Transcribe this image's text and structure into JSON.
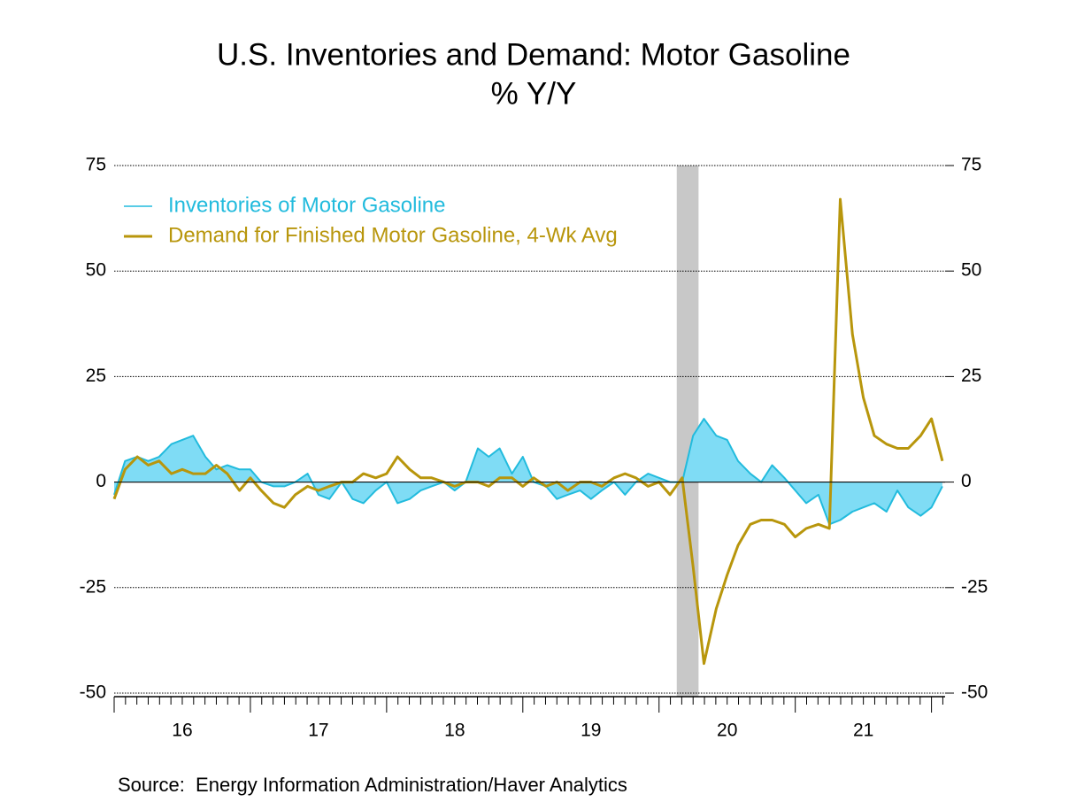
{
  "chart_data": {
    "type": "line",
    "title": "U.S. Inventories and Demand: Motor Gasoline",
    "subtitle": "% Y/Y",
    "source": "Source:  Energy Information Administration/Haver Analytics",
    "x": [
      2016.0,
      2016.08,
      2016.17,
      2016.25,
      2016.33,
      2016.42,
      2016.5,
      2016.58,
      2016.67,
      2016.75,
      2016.83,
      2016.92,
      2017.0,
      2017.08,
      2017.17,
      2017.25,
      2017.33,
      2017.42,
      2017.5,
      2017.58,
      2017.67,
      2017.75,
      2017.83,
      2017.92,
      2018.0,
      2018.08,
      2018.17,
      2018.25,
      2018.33,
      2018.42,
      2018.5,
      2018.58,
      2018.67,
      2018.75,
      2018.83,
      2018.92,
      2019.0,
      2019.08,
      2019.17,
      2019.25,
      2019.33,
      2019.42,
      2019.5,
      2019.58,
      2019.67,
      2019.75,
      2019.83,
      2019.92,
      2020.0,
      2020.08,
      2020.17,
      2020.25,
      2020.33,
      2020.42,
      2020.5,
      2020.58,
      2020.67,
      2020.75,
      2020.83,
      2020.92,
      2021.0,
      2021.08,
      2021.17,
      2021.25,
      2021.33,
      2021.42,
      2021.5,
      2021.58,
      2021.67,
      2021.75,
      2021.83,
      2021.92,
      2022.0,
      2022.08
    ],
    "series": [
      {
        "name": "Inventories of Motor Gasoline",
        "color": "#22bbdd",
        "fill": "#7fdcf5",
        "values": [
          -3,
          5,
          6,
          5,
          6,
          9,
          10,
          11,
          6,
          3,
          4,
          3,
          3,
          0,
          -1,
          -1,
          0,
          2,
          -3,
          -4,
          0,
          -4,
          -5,
          -2,
          0,
          -5,
          -4,
          -2,
          -1,
          0,
          -2,
          0,
          8,
          6,
          8,
          2,
          6,
          0,
          -1,
          -4,
          -3,
          -2,
          -4,
          -2,
          0,
          -3,
          0,
          2,
          1,
          0,
          0,
          11,
          15,
          11,
          10,
          5,
          2,
          0,
          4,
          1,
          -2,
          -5,
          -3,
          -10,
          -9,
          -7,
          -6,
          -5,
          -7,
          -2,
          -6,
          -8,
          -6,
          -1
        ]
      },
      {
        "name": "Demand for Finished Motor Gasoline, 4-Wk Avg",
        "color": "#b8960c",
        "values": [
          -4,
          3,
          6,
          4,
          5,
          2,
          3,
          2,
          2,
          4,
          2,
          -2,
          1,
          -2,
          -5,
          -6,
          -3,
          -1,
          -2,
          -1,
          0,
          0,
          2,
          1,
          2,
          6,
          3,
          1,
          1,
          0,
          -1,
          0,
          0,
          -1,
          1,
          1,
          -1,
          1,
          -1,
          0,
          -2,
          0,
          0,
          -1,
          1,
          2,
          1,
          -1,
          0,
          -3,
          1,
          -20,
          -43,
          -30,
          -22,
          -15,
          -10,
          -9,
          -9,
          -10,
          -13,
          -11,
          -10,
          -11,
          67,
          35,
          20,
          11,
          9,
          8,
          8,
          11,
          15,
          5
        ]
      }
    ],
    "shade": [
      2020.13,
      2020.29
    ],
    "xlim": [
      2016,
      2022.1
    ],
    "xticks": [
      {
        "value": 2016.5,
        "label": "16"
      },
      {
        "value": 2017.5,
        "label": "17"
      },
      {
        "value": 2018.5,
        "label": "18"
      },
      {
        "value": 2019.5,
        "label": "19"
      },
      {
        "value": 2020.5,
        "label": "20"
      },
      {
        "value": 2021.5,
        "label": "21"
      }
    ],
    "ylim": [
      -50,
      75
    ],
    "yticks": [
      75,
      50,
      25,
      0,
      -25,
      -50
    ],
    "grid": true,
    "legend": "upper left"
  }
}
